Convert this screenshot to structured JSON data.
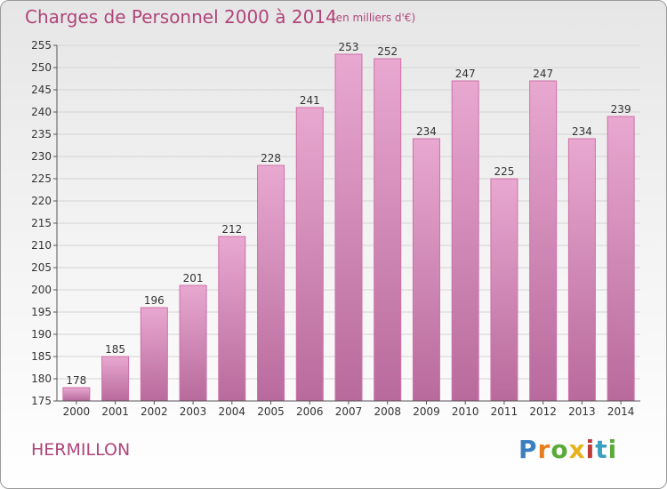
{
  "header": {
    "title": "Charges de Personnel 2000 à 2014",
    "subtitle": "(en milliers d'€)"
  },
  "footer": {
    "town": "HERMILLON",
    "logo_text": "Proxiti",
    "logo_colors": [
      "#3a7fc0",
      "#e87d1e",
      "#5aaa3a",
      "#e8b21e",
      "#c03a3a",
      "#3a9fc0",
      "#5aaa3a"
    ]
  },
  "colors": {
    "bar_fill_top": "#e8a8d0",
    "bar_fill_bottom": "#b86a9c",
    "bar_stroke": "#d070a8",
    "label": "#333333",
    "grid": "#d4d4d4"
  },
  "chart_data": {
    "type": "bar",
    "title": "Charges de Personnel 2000 à 2014",
    "subtitle": "(en milliers d'€)",
    "categories": [
      "2000",
      "2001",
      "2002",
      "2003",
      "2004",
      "2005",
      "2006",
      "2007",
      "2008",
      "2009",
      "2010",
      "2011",
      "2012",
      "2013",
      "2014"
    ],
    "values": [
      178,
      185,
      196,
      201,
      212,
      228,
      241,
      253,
      252,
      234,
      247,
      225,
      247,
      234,
      239
    ],
    "ylim": [
      175,
      255
    ],
    "yticks": [
      175,
      180,
      185,
      190,
      195,
      200,
      205,
      210,
      215,
      220,
      225,
      230,
      235,
      240,
      245,
      250,
      255
    ],
    "grid": true,
    "data_labels": true
  }
}
